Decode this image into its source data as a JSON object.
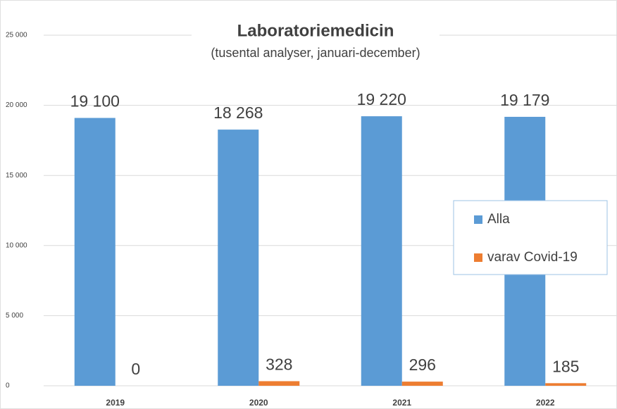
{
  "chart_data": {
    "type": "bar",
    "title": "Laboratoriemedicin",
    "subtitle": "(tusental analyser, januari-december)",
    "categories": [
      "2019",
      "2020",
      "2021",
      "2022"
    ],
    "series": [
      {
        "name": "Alla",
        "color": "#5b9bd5",
        "values": [
          19100,
          18268,
          19220,
          19179
        ],
        "value_labels": [
          "19 100",
          "18 268",
          "19 220",
          "19 179"
        ]
      },
      {
        "name": "varav Covid-19",
        "color": "#ed7d31",
        "values": [
          0,
          328,
          296,
          185
        ]
      }
    ],
    "ylim": [
      0,
      25000
    ],
    "yticks": [
      0,
      {
        "value": 5000,
        "label": "5 000"
      },
      {
        "value": 10000,
        "label": "10 000"
      },
      {
        "value": 15000,
        "label": "15 000"
      },
      {
        "value": 20000,
        "label": "20 000"
      },
      {
        "value": 25000,
        "label": "25 000"
      }
    ],
    "grid": true,
    "legend": "right"
  }
}
